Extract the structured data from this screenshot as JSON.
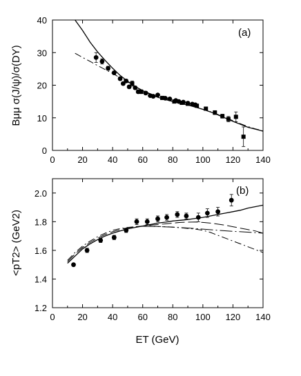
{
  "chart_data": [
    {
      "panel_label": "(a)",
      "type": "scatter",
      "ylabel": "Bμμ σ(J/ψ)/σ(DY)",
      "xlim": [
        0,
        140
      ],
      "ylim": [
        0,
        40
      ],
      "x_ticks": [
        "0",
        "20",
        "40",
        "60",
        "80",
        "100",
        "120",
        "140"
      ],
      "y_ticks": [
        "0",
        "10",
        "20",
        "30",
        "40"
      ],
      "series": [
        {
          "marker": "circle",
          "points": [
            {
              "x": 29,
              "y": 28.5,
              "err": 1.5
            },
            {
              "x": 33,
              "y": 27.3,
              "err": 0.8
            },
            {
              "x": 37,
              "y": 25.2,
              "err": 0.6
            },
            {
              "x": 41,
              "y": 23.8,
              "err": 0.5
            },
            {
              "x": 45,
              "y": 22.0,
              "err": 0.5
            },
            {
              "x": 47,
              "y": 20.5,
              "err": 0.5
            },
            {
              "x": 49,
              "y": 21.3,
              "err": 0.5
            },
            {
              "x": 51,
              "y": 19.5,
              "err": 0.5
            },
            {
              "x": 55,
              "y": 19.2,
              "err": 0.5
            },
            {
              "x": 57,
              "y": 18.0,
              "err": 0.5
            },
            {
              "x": 62,
              "y": 17.6,
              "err": 0.5
            },
            {
              "x": 65,
              "y": 16.8,
              "err": 0.4
            },
            {
              "x": 67,
              "y": 16.6,
              "err": 0.4
            },
            {
              "x": 70,
              "y": 17.0,
              "err": 0.4
            },
            {
              "x": 75,
              "y": 16.0,
              "err": 0.4
            },
            {
              "x": 78,
              "y": 15.8,
              "err": 0.4
            },
            {
              "x": 82,
              "y": 15.3,
              "err": 0.4
            },
            {
              "x": 84,
              "y": 15.0,
              "err": 0.4
            },
            {
              "x": 87,
              "y": 14.8,
              "err": 0.4
            },
            {
              "x": 90,
              "y": 14.5,
              "err": 0.4
            },
            {
              "x": 93,
              "y": 14.2,
              "err": 0.4
            },
            {
              "x": 95,
              "y": 14.0,
              "err": 0.4
            }
          ]
        },
        {
          "marker": "square",
          "points": [
            {
              "x": 53,
              "y": 20.5,
              "err": 0.8
            },
            {
              "x": 59,
              "y": 18.0,
              "err": 0.6
            },
            {
              "x": 73,
              "y": 16.1,
              "err": 0.5
            },
            {
              "x": 81,
              "y": 15.0,
              "err": 0.5
            },
            {
              "x": 86,
              "y": 14.6,
              "err": 0.5
            },
            {
              "x": 90,
              "y": 14.3,
              "err": 0.5
            },
            {
              "x": 96,
              "y": 13.7,
              "err": 0.5
            },
            {
              "x": 102,
              "y": 12.8,
              "err": 0.5
            },
            {
              "x": 108,
              "y": 11.6,
              "err": 0.6
            },
            {
              "x": 113,
              "y": 10.5,
              "err": 0.6
            },
            {
              "x": 117,
              "y": 9.6,
              "err": 0.8
            },
            {
              "x": 122,
              "y": 10.3,
              "err": 1.5
            },
            {
              "x": 127,
              "y": 4.2,
              "err": 3.0
            }
          ]
        }
      ],
      "curves": [
        {
          "style": "solid",
          "points": [
            [
              15,
              40
            ],
            [
              20,
              36.8
            ],
            [
              25,
              33.2
            ],
            [
              30,
              30.2
            ],
            [
              35,
              27.6
            ],
            [
              40,
              25.2
            ],
            [
              45,
              23.0
            ],
            [
              50,
              21.2
            ],
            [
              55,
              19.6
            ],
            [
              60,
              18.3
            ],
            [
              65,
              17.2
            ],
            [
              70,
              16.3
            ],
            [
              75,
              15.6
            ],
            [
              80,
              15.0
            ],
            [
              85,
              14.4
            ],
            [
              90,
              13.9
            ],
            [
              95,
              13.3
            ],
            [
              100,
              12.6
            ],
            [
              105,
              11.8
            ],
            [
              110,
              10.9
            ],
            [
              115,
              9.9
            ],
            [
              120,
              8.9
            ],
            [
              125,
              8.0
            ],
            [
              130,
              7.1
            ],
            [
              135,
              6.5
            ],
            [
              140,
              5.9
            ]
          ]
        },
        {
          "style": "dashdot",
          "points": [
            [
              15,
              29.8
            ],
            [
              20,
              28.5
            ],
            [
              25,
              27.3
            ],
            [
              30,
              26.0
            ],
            [
              35,
              24.8
            ],
            [
              40,
              23.6
            ],
            [
              45,
              22.3
            ],
            [
              50,
              21.0
            ],
            [
              55,
              19.6
            ],
            [
              60,
              18.4
            ],
            [
              65,
              17.4
            ],
            [
              70,
              16.5
            ],
            [
              75,
              15.8
            ],
            [
              80,
              15.1
            ],
            [
              85,
              14.5
            ],
            [
              90,
              13.9
            ],
            [
              95,
              13.3
            ],
            [
              100,
              12.6
            ],
            [
              105,
              11.9
            ],
            [
              110,
              11.0
            ],
            [
              115,
              10.1
            ],
            [
              120,
              9.1
            ],
            [
              125,
              8.2
            ],
            [
              130,
              7.3
            ],
            [
              135,
              6.6
            ],
            [
              140,
              6.0
            ]
          ]
        }
      ]
    },
    {
      "panel_label": "(b)",
      "type": "scatter",
      "xlabel": "ET (GeV)",
      "ylabel": "<pT2> (GeV2)",
      "xlim": [
        0,
        140
      ],
      "ylim": [
        1.2,
        2.1
      ],
      "x_ticks": [
        "0",
        "20",
        "40",
        "60",
        "80",
        "100",
        "120",
        "140"
      ],
      "y_ticks": [
        "1.2",
        "1.4",
        "1.6",
        "1.8",
        "2.0"
      ],
      "series": [
        {
          "marker": "circle",
          "points": [
            {
              "x": 14,
              "y": 1.5,
              "err": 0.0
            },
            {
              "x": 23,
              "y": 1.6,
              "err": 0.015
            },
            {
              "x": 32,
              "y": 1.67,
              "err": 0.015
            },
            {
              "x": 41,
              "y": 1.69,
              "err": 0.015
            },
            {
              "x": 49,
              "y": 1.74,
              "err": 0.015
            },
            {
              "x": 56,
              "y": 1.8,
              "err": 0.02
            },
            {
              "x": 63,
              "y": 1.8,
              "err": 0.02
            },
            {
              "x": 70,
              "y": 1.82,
              "err": 0.02
            },
            {
              "x": 76,
              "y": 1.83,
              "err": 0.02
            },
            {
              "x": 83,
              "y": 1.85,
              "err": 0.02
            },
            {
              "x": 89,
              "y": 1.84,
              "err": 0.02
            },
            {
              "x": 97,
              "y": 1.83,
              "err": 0.03
            },
            {
              "x": 103,
              "y": 1.86,
              "err": 0.03
            },
            {
              "x": 110,
              "y": 1.87,
              "err": 0.03
            },
            {
              "x": 119,
              "y": 1.95,
              "err": 0.04
            }
          ]
        }
      ],
      "curves": [
        {
          "style": "solid",
          "points": [
            [
              10,
              1.51
            ],
            [
              15,
              1.56
            ],
            [
              20,
              1.61
            ],
            [
              25,
              1.645
            ],
            [
              30,
              1.675
            ],
            [
              35,
              1.7
            ],
            [
              40,
              1.72
            ],
            [
              45,
              1.735
            ],
            [
              50,
              1.75
            ],
            [
              55,
              1.76
            ],
            [
              60,
              1.77
            ],
            [
              65,
              1.78
            ],
            [
              70,
              1.79
            ],
            [
              75,
              1.797
            ],
            [
              80,
              1.805
            ],
            [
              85,
              1.81
            ],
            [
              90,
              1.815
            ],
            [
              95,
              1.823
            ],
            [
              100,
              1.83
            ],
            [
              105,
              1.84
            ],
            [
              110,
              1.85
            ],
            [
              115,
              1.86
            ],
            [
              120,
              1.87
            ],
            [
              125,
              1.88
            ],
            [
              130,
              1.895
            ],
            [
              135,
              1.905
            ],
            [
              140,
              1.915
            ]
          ]
        },
        {
          "style": "dashed",
          "points": [
            [
              10,
              1.52
            ],
            [
              15,
              1.575
            ],
            [
              20,
              1.62
            ],
            [
              25,
              1.655
            ],
            [
              30,
              1.685
            ],
            [
              35,
              1.71
            ],
            [
              40,
              1.73
            ],
            [
              45,
              1.745
            ],
            [
              50,
              1.757
            ],
            [
              55,
              1.765
            ],
            [
              60,
              1.77
            ],
            [
              65,
              1.775
            ],
            [
              70,
              1.78
            ],
            [
              75,
              1.785
            ],
            [
              80,
              1.79
            ],
            [
              85,
              1.795
            ],
            [
              90,
              1.797
            ],
            [
              95,
              1.798
            ],
            [
              100,
              1.795
            ],
            [
              105,
              1.79
            ],
            [
              110,
              1.783
            ],
            [
              115,
              1.775
            ],
            [
              120,
              1.765
            ],
            [
              125,
              1.755
            ],
            [
              130,
              1.745
            ],
            [
              135,
              1.735
            ],
            [
              140,
              1.72
            ]
          ]
        },
        {
          "style": "dashdot",
          "points": [
            [
              10,
              1.53
            ],
            [
              15,
              1.585
            ],
            [
              20,
              1.63
            ],
            [
              25,
              1.665
            ],
            [
              30,
              1.695
            ],
            [
              35,
              1.72
            ],
            [
              40,
              1.74
            ],
            [
              45,
              1.752
            ],
            [
              50,
              1.76
            ],
            [
              55,
              1.765
            ],
            [
              60,
              1.768
            ],
            [
              65,
              1.768
            ],
            [
              70,
              1.767
            ],
            [
              75,
              1.765
            ],
            [
              80,
              1.762
            ],
            [
              85,
              1.758
            ],
            [
              90,
              1.753
            ],
            [
              95,
              1.748
            ],
            [
              100,
              1.74
            ],
            [
              105,
              1.725
            ],
            [
              110,
              1.705
            ],
            [
              115,
              1.685
            ],
            [
              120,
              1.665
            ],
            [
              125,
              1.645
            ],
            [
              130,
              1.625
            ],
            [
              135,
              1.605
            ],
            [
              140,
              1.585
            ]
          ]
        },
        {
          "style": "dashdot-long",
          "points": [
            [
              60,
              1.768
            ],
            [
              70,
              1.766
            ],
            [
              80,
              1.762
            ],
            [
              90,
              1.756
            ],
            [
              100,
              1.748
            ],
            [
              110,
              1.74
            ],
            [
              120,
              1.733
            ],
            [
              130,
              1.727
            ],
            [
              140,
              1.72
            ]
          ]
        }
      ]
    }
  ]
}
